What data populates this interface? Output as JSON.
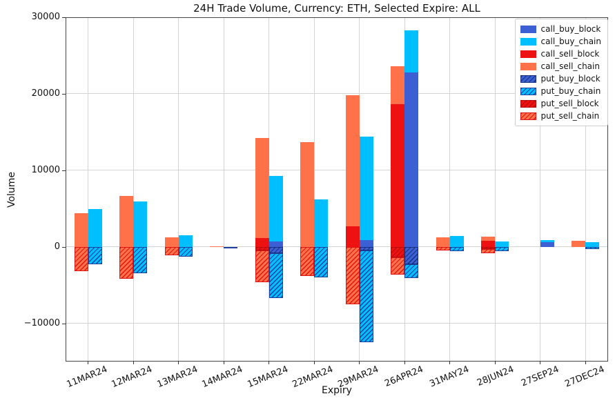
{
  "chart_data": {
    "type": "bar",
    "title": "24H Trade Volume, Currency: ETH, Selected Expire: ALL",
    "xlabel": "Expiry",
    "ylabel": "Volume",
    "ylim": [
      -15000,
      30000
    ],
    "grid": true,
    "legend_position": "upper right",
    "layout": "two stacked bars per category: sell stack (left, orange/red) and buy stack (right, cyan/blue); negative hatched segments are puts",
    "yticks": [
      {
        "value": 30000,
        "label": "30000"
      },
      {
        "value": 20000,
        "label": "20000"
      },
      {
        "value": 10000,
        "label": "10000"
      },
      {
        "value": 0,
        "label": "0"
      },
      {
        "value": -10000,
        "label": "−10000"
      }
    ],
    "categories": [
      "11MAR24",
      "12MAR24",
      "13MAR24",
      "14MAR24",
      "15MAR24",
      "22MAR24",
      "29MAR24",
      "26APR24",
      "31MAY24",
      "28JUN24",
      "27SEP24",
      "27DEC24"
    ],
    "series": [
      {
        "name": "call_buy_block",
        "group": "buy",
        "hatch": false,
        "color": "#3d5fd4",
        "hatch_color": null,
        "values": [
          0,
          0,
          0,
          0,
          700,
          0,
          900,
          22800,
          0,
          0,
          600,
          0
        ]
      },
      {
        "name": "call_buy_chain",
        "group": "buy",
        "hatch": false,
        "color": "#00bfff",
        "hatch_color": null,
        "values": [
          4900,
          5900,
          1500,
          0,
          8600,
          6200,
          13500,
          5500,
          1400,
          700,
          300,
          600
        ]
      },
      {
        "name": "call_sell_block",
        "group": "sell",
        "hatch": false,
        "color": "#ee1111",
        "hatch_color": null,
        "values": [
          0,
          0,
          0,
          0,
          1100,
          0,
          2700,
          18600,
          0,
          800,
          0,
          0
        ]
      },
      {
        "name": "call_sell_chain",
        "group": "sell",
        "hatch": false,
        "color": "#ff7249",
        "hatch_color": null,
        "values": [
          4400,
          6600,
          1200,
          100,
          13100,
          13700,
          17100,
          5000,
          1200,
          500,
          0,
          800
        ]
      },
      {
        "name": "put_buy_block",
        "group": "buy",
        "hatch": true,
        "color": "#3d5fd4",
        "hatch_color": "#16307f",
        "values": [
          0,
          0,
          0,
          0,
          -800,
          0,
          -500,
          -2300,
          0,
          0,
          0,
          0
        ]
      },
      {
        "name": "put_buy_chain",
        "group": "buy",
        "hatch": true,
        "color": "#00bfff",
        "hatch_color": "#1f3f9e",
        "values": [
          -2300,
          -3500,
          -1300,
          -200,
          -5900,
          -4000,
          -12000,
          -1800,
          -600,
          -600,
          0,
          -300
        ]
      },
      {
        "name": "put_sell_block",
        "group": "sell",
        "hatch": true,
        "color": "#ee1111",
        "hatch_color": "#b30c0c",
        "values": [
          0,
          0,
          0,
          0,
          -500,
          0,
          0,
          -1400,
          0,
          -300,
          0,
          0
        ]
      },
      {
        "name": "put_sell_chain",
        "group": "sell",
        "hatch": true,
        "color": "#ff7249",
        "hatch_color": "#e01212",
        "values": [
          -3200,
          -4200,
          -1100,
          0,
          -4100,
          -3800,
          -7500,
          -2200,
          -500,
          -500,
          0,
          0
        ]
      }
    ]
  }
}
